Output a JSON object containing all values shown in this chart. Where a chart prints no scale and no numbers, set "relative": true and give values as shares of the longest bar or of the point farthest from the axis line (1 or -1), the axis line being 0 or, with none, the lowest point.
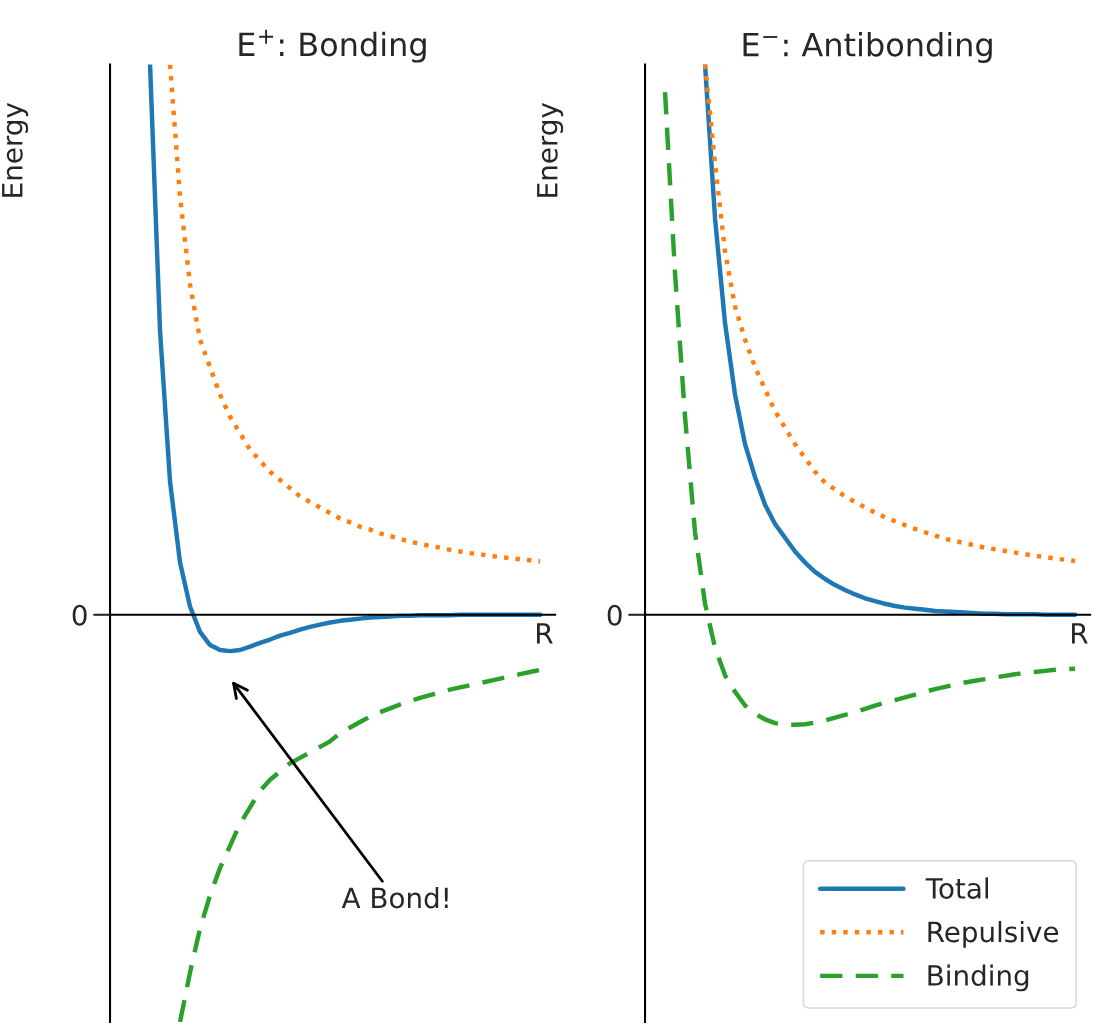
{
  "chart_data": [
    {
      "type": "line",
      "title": "E$^{+}$: Bonding",
      "xlabel": "R",
      "ylabel": "Energy",
      "relative": true,
      "legend": false,
      "categories": [
        null,
        null,
        null,
        null,
        null,
        null,
        null,
        null,
        null,
        null,
        null,
        null,
        null,
        null,
        null,
        null,
        null,
        null,
        null,
        null,
        null,
        null,
        null,
        null,
        null,
        null,
        null,
        null,
        null,
        null,
        null,
        null,
        null,
        null,
        null,
        null,
        null,
        null,
        null,
        null,
        null,
        null
      ],
      "series": [
        {
          "color": "#1f77b4",
          "line_style": "solid",
          "values": [
            null,
            null,
            1.0,
            0.516,
            0.242,
            0.095,
            0.015,
            -0.031,
            -0.055,
            -0.064,
            -0.066,
            -0.064,
            -0.058,
            -0.051,
            -0.045,
            -0.038,
            -0.033,
            -0.027,
            -0.022,
            -0.018,
            -0.014,
            -0.011,
            -0.009,
            -0.007,
            -0.005,
            -0.004,
            -0.003,
            -0.002,
            -0.002,
            -0.001,
            -0.001,
            -0.001,
            -0.001,
            0,
            0,
            0,
            0,
            0,
            0,
            0,
            0,
            0
          ]
        },
        {
          "color": "#ff7f0e",
          "line_style": "dotted",
          "values": [
            null,
            null,
            null,
            null,
            1.0,
            0.76,
            0.6,
            0.5,
            0.45,
            0.4,
            0.36,
            0.33,
            0.3,
            0.28,
            0.26,
            0.245,
            0.23,
            0.215,
            0.205,
            0.195,
            0.185,
            0.175,
            0.168,
            0.16,
            0.155,
            0.148,
            0.143,
            0.138,
            0.133,
            0.129,
            0.125,
            0.122,
            0.118,
            0.115,
            0.112,
            0.11,
            0.107,
            0.105,
            0.103,
            0.101,
            0.099,
            0.097
          ]
        },
        {
          "color": "#2ca02c",
          "line_style": "dashed",
          "values": [
            null,
            null,
            null,
            null,
            null,
            -0.74,
            -0.65,
            -0.57,
            -0.51,
            -0.46,
            -0.42,
            -0.38,
            -0.35,
            -0.32,
            -0.3,
            -0.285,
            -0.27,
            -0.26,
            -0.25,
            -0.24,
            -0.23,
            -0.215,
            -0.205,
            -0.195,
            -0.185,
            -0.177,
            -0.17,
            -0.163,
            -0.157,
            -0.151,
            -0.146,
            -0.141,
            -0.136,
            -0.132,
            -0.128,
            -0.124,
            -0.12,
            -0.116,
            -0.112,
            -0.108,
            -0.104,
            -0.1
          ]
        }
      ],
      "ref_lines": [
        {
          "axis": "y",
          "value": 0,
          "label": "0"
        }
      ],
      "annotations": [
        "A Bond!"
      ]
    },
    {
      "type": "line",
      "title": "E$^{−}$: Antibonding",
      "xlabel": "R",
      "ylabel": "Energy",
      "relative": true,
      "legend": "bottom right",
      "categories": [
        null,
        null,
        null,
        null,
        null,
        null,
        null,
        null,
        null,
        null,
        null,
        null,
        null,
        null,
        null,
        null,
        null,
        null,
        null,
        null,
        null,
        null,
        null,
        null,
        null,
        null,
        null,
        null,
        null,
        null,
        null,
        null,
        null,
        null,
        null,
        null,
        null,
        null,
        null,
        null,
        null,
        null
      ],
      "series": [
        {
          "name": "Total",
          "color": "#1f77b4",
          "line_style": "solid",
          "values": [
            null,
            null,
            null,
            null,
            1.0,
            0.72,
            0.53,
            0.4,
            0.31,
            0.25,
            0.2,
            0.165,
            0.14,
            0.115,
            0.095,
            0.078,
            0.065,
            0.054,
            0.045,
            0.037,
            0.03,
            0.025,
            0.02,
            0.016,
            0.013,
            0.011,
            0.009,
            0.007,
            0.006,
            0.005,
            0.004,
            0.003,
            0.002,
            0.002,
            0.001,
            0.001,
            0.001,
            0.001,
            0,
            0,
            0,
            0
          ]
        },
        {
          "name": "Repulsive",
          "color": "#ff7f0e",
          "line_style": "dotted",
          "values": [
            null,
            null,
            null,
            null,
            1.0,
            0.82,
            0.66,
            0.56,
            0.5,
            0.45,
            0.41,
            0.37,
            0.34,
            0.31,
            0.285,
            0.26,
            0.24,
            0.228,
            0.215,
            0.205,
            0.195,
            0.186,
            0.177,
            0.17,
            0.163,
            0.156,
            0.15,
            0.144,
            0.138,
            0.134,
            0.13,
            0.126,
            0.122,
            0.119,
            0.116,
            0.113,
            0.11,
            0.107,
            0.105,
            0.102,
            0.1,
            0.098
          ]
        },
        {
          "name": "Binding",
          "color": "#2ca02c",
          "line_style": "dashed",
          "values": [
            0.95,
            0.62,
            0.36,
            0.15,
            0.02,
            -0.06,
            -0.11,
            -0.14,
            -0.165,
            -0.18,
            -0.19,
            -0.197,
            -0.2,
            -0.2,
            -0.199,
            -0.196,
            -0.192,
            -0.187,
            -0.182,
            -0.177,
            -0.171,
            -0.165,
            -0.16,
            -0.155,
            -0.15,
            -0.145,
            -0.14,
            -0.135,
            -0.131,
            -0.127,
            -0.123,
            -0.12,
            -0.117,
            -0.114,
            -0.111,
            -0.108,
            -0.106,
            -0.104,
            -0.102,
            -0.1,
            -0.099,
            -0.098
          ]
        }
      ],
      "ref_lines": [
        {
          "axis": "y",
          "value": 0,
          "label": "0"
        }
      ]
    }
  ]
}
